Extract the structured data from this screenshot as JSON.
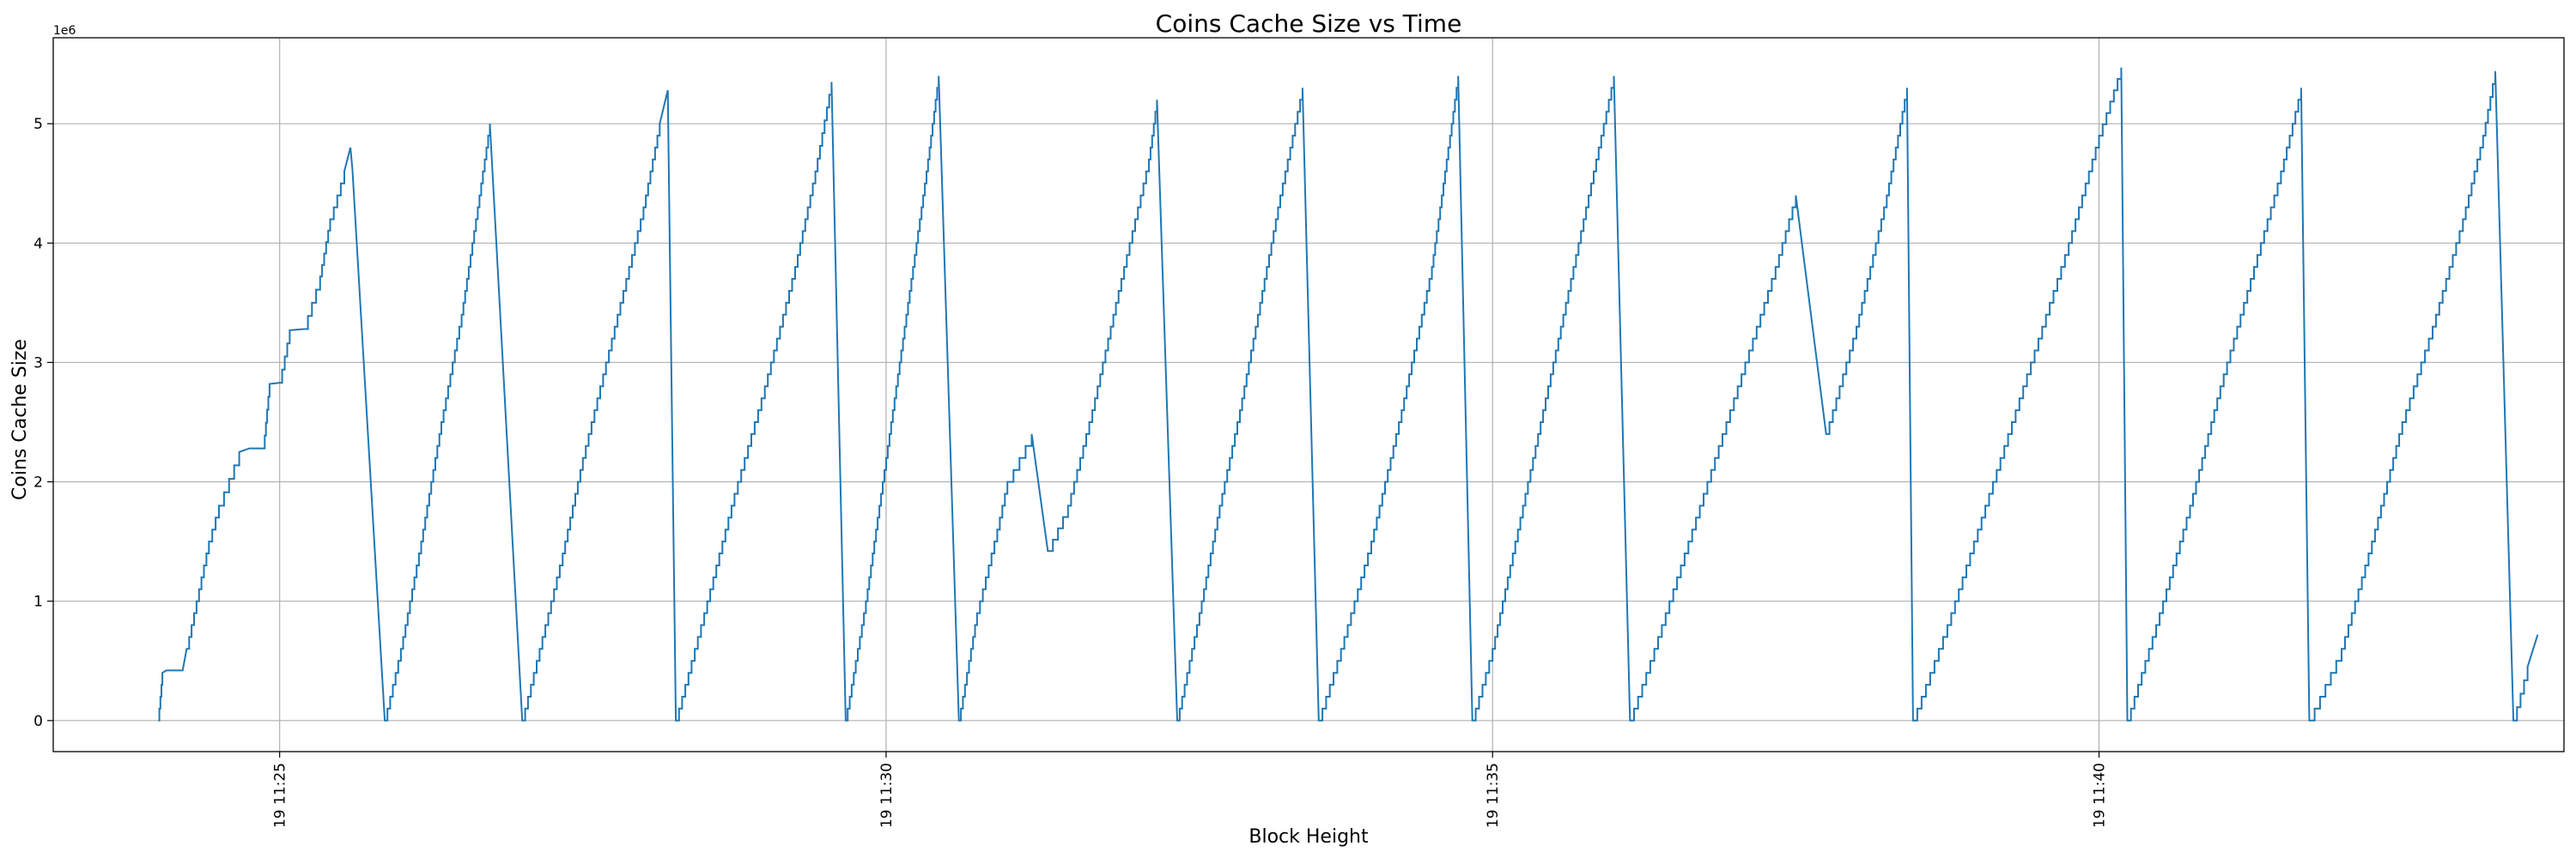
{
  "chart_data": {
    "type": "line",
    "title": "Coins Cache Size vs Time",
    "xlabel": "Block Height",
    "ylabel": "Coins Cache Size",
    "y_offset_text": "1e6",
    "y_unit_multiplier": 1000000,
    "xlim": [
      "11:23:08",
      "11:43:50"
    ],
    "ylim": [
      -0.26,
      5.72
    ],
    "grid": true,
    "x_ticks": [
      {
        "value": "11:25:00",
        "label": "19 11:25"
      },
      {
        "value": "11:30:00",
        "label": "19 11:30"
      },
      {
        "value": "11:35:00",
        "label": "19 11:35"
      },
      {
        "value": "11:40:00",
        "label": "19 11:40"
      }
    ],
    "y_ticks": [
      0,
      1,
      2,
      3,
      4,
      5
    ],
    "series": [
      {
        "color": "#1f77b4",
        "cycles": [
          {
            "x": [
              "11:24:00",
              "11:24:02",
              "11:24:04",
              "11:24:12",
              "11:24:14",
              "11:24:25",
              "11:24:30",
              "11:24:40",
              "11:24:45",
              "11:24:52",
              "11:24:55",
              "11:25:00",
              "11:25:05",
              "11:25:12",
              "11:25:20",
              "11:25:25",
              "11:25:32",
              "11:25:35",
              "11:25:36"
            ],
            "y": [
              0.0,
              0.4,
              0.42,
              0.42,
              0.6,
              1.5,
              1.8,
              2.25,
              2.28,
              2.28,
              2.82,
              2.83,
              3.27,
              3.28,
              3.72,
              4.2,
              4.6,
              4.8,
              4.62
            ]
          },
          {
            "x": [
              "11:25:52",
              "11:26:00",
              "11:26:10",
              "11:26:20",
              "11:26:30",
              "11:26:38",
              "11:26:44"
            ],
            "y": [
              0.0,
              0.6,
              1.5,
              2.5,
              3.4,
              4.3,
              5.0
            ]
          },
          {
            "x": [
              "11:27:00",
              "11:27:10",
              "11:27:20",
              "11:27:30",
              "11:27:40",
              "11:27:50",
              "11:28:00",
              "11:28:08",
              "11:28:12"
            ],
            "y": [
              0.0,
              0.7,
              1.4,
              2.2,
              2.9,
              3.6,
              4.3,
              5.0,
              5.28
            ]
          },
          {
            "x": [
              "11:28:16",
              "11:28:30",
              "11:28:45",
              "11:29:00",
              "11:29:15",
              "11:29:25",
              "11:29:33"
            ],
            "y": [
              0.0,
              0.9,
              1.9,
              2.8,
              3.8,
              4.6,
              5.35
            ]
          },
          {
            "x": [
              "11:29:40",
              "11:29:50",
              "11:30:00",
              "11:30:10",
              "11:30:20",
              "11:30:26"
            ],
            "y": [
              0.0,
              1.0,
              2.2,
              3.4,
              4.6,
              5.4
            ]
          },
          {
            "x": [
              "11:30:36",
              "11:30:45",
              "11:30:55",
              "11:31:00",
              "11:31:12",
              "11:31:20",
              "11:31:30",
              "11:31:42",
              "11:31:55",
              "11:32:10",
              "11:32:14"
            ],
            "y": [
              0.0,
              0.9,
              1.6,
              2.0,
              2.4,
              1.42,
              1.8,
              2.6,
              3.6,
              4.7,
              5.2
            ]
          },
          {
            "x": [
              "11:32:24",
              "11:32:35",
              "11:32:45",
              "11:32:55",
              "11:33:05",
              "11:33:15",
              "11:33:26"
            ],
            "y": [
              0.0,
              0.9,
              1.8,
              2.6,
              3.5,
              4.4,
              5.3
            ]
          },
          {
            "x": [
              "11:33:34",
              "11:33:45",
              "11:34:00",
              "11:34:15",
              "11:34:30",
              "11:34:43"
            ],
            "y": [
              0.0,
              0.6,
              1.5,
              2.6,
              3.8,
              5.4
            ]
          },
          {
            "x": [
              "11:34:50",
              "11:35:00",
              "11:35:15",
              "11:35:30",
              "11:35:45",
              "11:35:55",
              "11:36:00"
            ],
            "y": [
              0.0,
              0.6,
              1.8,
              3.0,
              4.2,
              5.0,
              5.4
            ]
          },
          {
            "x": [
              "11:36:08",
              "11:36:20",
              "11:36:35",
              "11:36:50",
              "11:37:05",
              "11:37:20",
              "11:37:30",
              "11:37:45",
              "11:38:00",
              "11:38:15",
              "11:38:25"
            ],
            "y": [
              0.0,
              0.6,
              1.4,
              2.2,
              3.0,
              3.8,
              4.4,
              2.4,
              3.3,
              4.4,
              5.3
            ]
          },
          {
            "x": [
              "11:38:28",
              "11:38:45",
              "11:39:00",
              "11:39:15",
              "11:39:30",
              "11:39:45",
              "11:40:00",
              "11:40:11"
            ],
            "y": [
              0.0,
              0.8,
              1.6,
              2.4,
              3.2,
              4.0,
              4.9,
              5.47
            ]
          },
          {
            "x": [
              "11:40:14",
              "11:40:30",
              "11:40:45",
              "11:41:00",
              "11:41:15",
              "11:41:30",
              "11:41:40"
            ],
            "y": [
              0.0,
              0.9,
              1.8,
              2.8,
              3.7,
              4.6,
              5.3
            ]
          },
          {
            "x": [
              "11:41:44",
              "11:42:00",
              "11:42:15",
              "11:42:30",
              "11:42:45",
              "11:43:00",
              "11:43:10",
              "11:43:16"
            ],
            "y": [
              0.0,
              0.6,
              1.5,
              2.5,
              3.3,
              4.2,
              4.9,
              5.44
            ]
          },
          {
            "x": [
              "11:43:25",
              "11:43:32",
              "11:43:37"
            ],
            "y": [
              0.0,
              0.45,
              0.72
            ]
          }
        ]
      }
    ]
  }
}
